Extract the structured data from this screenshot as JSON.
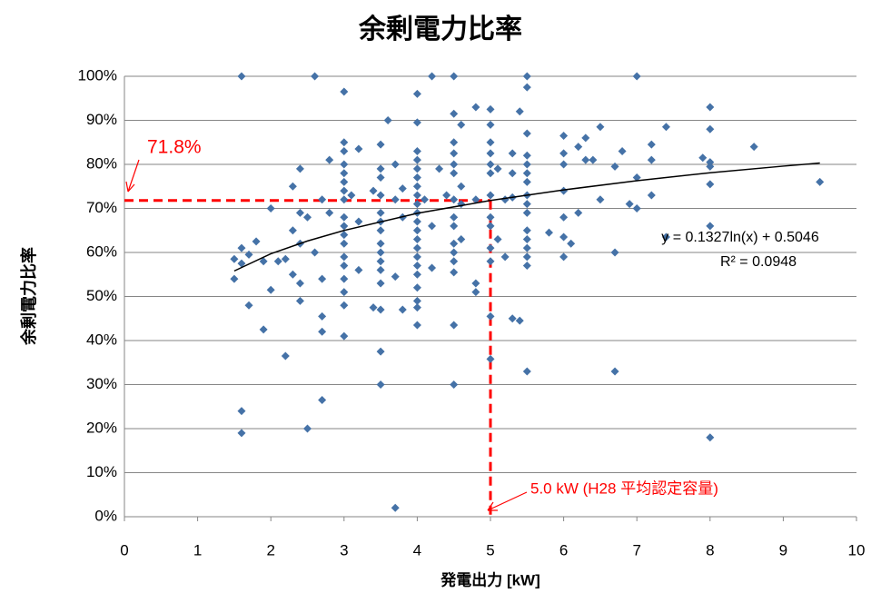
{
  "chart_data": {
    "type": "scatter",
    "title": "余剰電力比率",
    "x_label": "発電出力 [kW]",
    "y_label": "余剰電力比率",
    "color": "#4572a7",
    "xlim": [
      0,
      10
    ],
    "xticks": [
      0,
      1,
      2,
      3,
      4,
      5,
      6,
      7,
      8,
      9,
      10
    ],
    "ylim": [
      0,
      100
    ],
    "yticks": [
      {
        "value": 0,
        "label": "0%"
      },
      {
        "value": 10,
        "label": "10%"
      },
      {
        "value": 20,
        "label": "20%"
      },
      {
        "value": 30,
        "label": "30%"
      },
      {
        "value": 40,
        "label": "40%"
      },
      {
        "value": 50,
        "label": "50%"
      },
      {
        "value": 60,
        "label": "60%"
      },
      {
        "value": 70,
        "label": "70%"
      },
      {
        "value": 80,
        "label": "80%"
      },
      {
        "value": 90,
        "label": "90%"
      },
      {
        "value": 100,
        "label": "100%"
      }
    ],
    "grid": true,
    "x": [
      1.6,
      2.6,
      4.2,
      4.5,
      5.5,
      7,
      3,
      4,
      5.5,
      4.8,
      5,
      4.5,
      5.4,
      8,
      3.6,
      4,
      4.6,
      5,
      6.5,
      7.4,
      8,
      6,
      6.3,
      5.5,
      3,
      4.5,
      5,
      7.2,
      8.6,
      6.2,
      3.5,
      3.2,
      3,
      4,
      4.5,
      5,
      5.3,
      5.5,
      6,
      6.8,
      2.4,
      2.8,
      3,
      3,
      3,
      3.5,
      3.5,
      3.7,
      4,
      4,
      4,
      4,
      4.3,
      4.5,
      4.5,
      4.6,
      5,
      5,
      5.1,
      5.3,
      5.5,
      5.5,
      5.5,
      6,
      6.3,
      6.4,
      6.7,
      7,
      7.2,
      7.9,
      8,
      8,
      9.5,
      2.3,
      2.7,
      3,
      3,
      3.1,
      3.4,
      3.5,
      3.7,
      3.8,
      4,
      4,
      4.1,
      4.4,
      4.5,
      4.6,
      4.8,
      5,
      5.2,
      5.3,
      5.5,
      5.5,
      5.5,
      6,
      6.5,
      7.2,
      8,
      6.9,
      7,
      2,
      2.4,
      2.5,
      2.8,
      3,
      3,
      3,
      3.2,
      3.5,
      3.5,
      3.5,
      3.8,
      4,
      4,
      4,
      4,
      4.2,
      4.5,
      4.5,
      4.6,
      5,
      5,
      5.1,
      5.5,
      5.5,
      5.5,
      5.8,
      6,
      6,
      6.2,
      6.1,
      7.4,
      8,
      6.7,
      2.3,
      2.4,
      2.6,
      2.1,
      2.2,
      1.9,
      1.5,
      1.6,
      1.5,
      1.6,
      1.8,
      1.7,
      2.3,
      2.4,
      2.7,
      2.4,
      2.7,
      2.7,
      3,
      3,
      3,
      3,
      3,
      3,
      3,
      3.2,
      3.5,
      3.5,
      3.5,
      3.5,
      3.5,
      3.4,
      3.5,
      3.7,
      3.8,
      4,
      4,
      4,
      4,
      4,
      4,
      4,
      4,
      4.2,
      4.5,
      4.5,
      4.5,
      4.5,
      4.5,
      4.8,
      4.8,
      5,
      5,
      5,
      5,
      5.2,
      5.3,
      5.4,
      5.5,
      5.5,
      5.5,
      6,
      1.7,
      2,
      1.9,
      2.2,
      3.5,
      3.5,
      4.5,
      6.7,
      2.7,
      1.6,
      1.6,
      2.5,
      8,
      3.7
    ],
    "values": [
      100,
      100,
      100,
      100,
      100,
      100,
      96.5,
      96,
      97.5,
      93,
      92.5,
      91.5,
      92,
      93,
      90,
      89.5,
      89,
      89,
      88.5,
      88.5,
      88,
      86.5,
      86,
      87,
      85,
      85,
      85,
      84.5,
      84,
      84,
      84.5,
      83.5,
      83,
      83,
      82.5,
      82.5,
      82.5,
      82,
      82.5,
      83,
      79,
      81,
      80,
      78,
      76,
      79,
      77,
      80,
      81,
      79,
      77,
      75,
      79,
      80,
      78,
      75,
      80,
      78,
      79,
      78,
      80,
      78,
      76,
      80,
      81,
      81,
      79.5,
      77,
      81,
      81.5,
      80.5,
      79.5,
      76,
      75,
      72,
      74,
      72,
      73,
      74,
      73,
      72,
      74.5,
      73,
      71,
      72,
      73,
      72,
      71,
      72,
      73,
      72,
      72.5,
      73,
      71,
      69,
      74,
      72,
      73,
      75.5,
      71,
      70,
      70,
      69,
      68,
      69,
      68,
      66,
      64,
      67,
      69,
      67,
      65,
      68,
      69,
      67,
      65,
      63,
      66,
      68,
      66,
      63,
      68,
      66,
      63,
      65,
      63,
      61,
      64.5,
      68,
      63.5,
      69,
      62,
      63.5,
      66,
      60,
      65,
      62,
      60,
      58,
      58.5,
      58,
      58.5,
      57.5,
      54,
      61,
      62.5,
      59.5,
      55,
      53,
      54,
      49,
      45.5,
      42,
      62,
      59,
      57,
      54,
      51,
      48,
      41,
      56,
      62,
      60,
      58,
      56,
      53,
      47.5,
      47,
      54.5,
      47,
      61,
      59,
      57,
      55,
      52,
      49,
      47.5,
      43.5,
      56.5,
      62,
      60,
      58,
      55.5,
      43.5,
      53,
      51,
      61,
      58,
      45.5,
      35.8,
      59,
      45,
      44.5,
      59,
      57,
      33,
      59,
      48,
      51.5,
      42.5,
      36.5,
      37.5,
      30,
      30,
      33,
      26.5,
      24,
      19,
      20,
      18,
      2
    ],
    "trendline": {
      "color": "#000000",
      "x": [
        1.5,
        2,
        2.5,
        3,
        4,
        5,
        6,
        7,
        8,
        9,
        9.5
      ],
      "values": [
        55.8,
        59.7,
        62.6,
        65.0,
        68.9,
        71.8,
        74.2,
        76.3,
        78.1,
        79.6,
        80.3
      ]
    },
    "reference_lines": {
      "x": 5,
      "y": 71.8,
      "color": "#ff0000"
    },
    "annotations": [
      "y = 0.1327ln(x) + 0.5046",
      "R² = 0.0948",
      "71.8%",
      "5.0 kW (H28 平均認定容量)"
    ]
  }
}
